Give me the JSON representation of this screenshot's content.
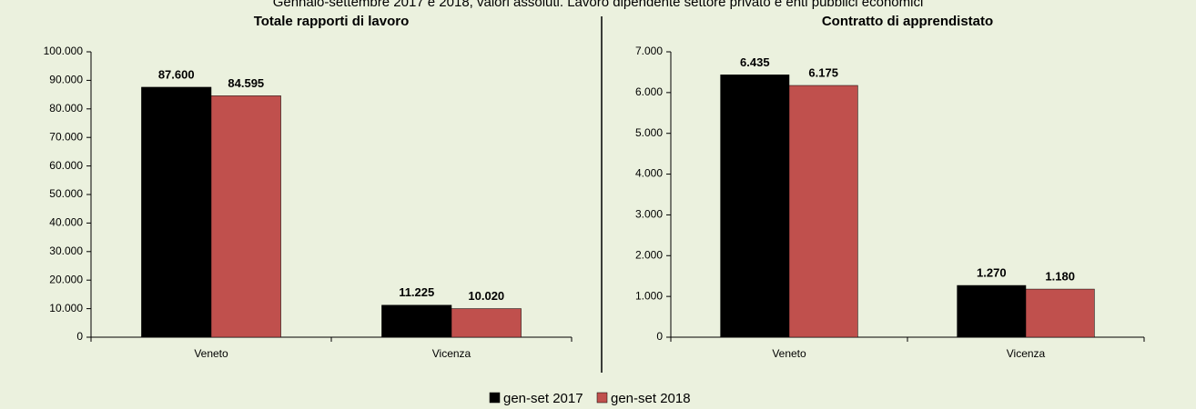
{
  "subtitle": "Gennaio-settembre 2017 e 2018, valori assoluti. Lavoro dipendente settore privato e enti pubblici economici",
  "chart_data": [
    {
      "type": "bar",
      "title": "Totale rapporti di lavoro",
      "categories": [
        "Veneto",
        "Vicenza"
      ],
      "series": [
        {
          "name": "gen-set 2017",
          "color": "#000000",
          "values": [
            87600,
            11225
          ],
          "value_labels": [
            "87.600",
            "11.225"
          ]
        },
        {
          "name": "gen-set 2018",
          "color": "#c0504d",
          "values": [
            84595,
            10020
          ],
          "value_labels": [
            "84.595",
            "10.020"
          ]
        }
      ],
      "ylim": [
        0,
        100000
      ],
      "yticks": [
        0,
        {
          "value": 10000,
          "label": "10.000"
        },
        {
          "value": 20000,
          "label": "20.000"
        },
        {
          "value": 30000,
          "label": "30.000"
        },
        {
          "value": 40000,
          "label": "40.000"
        },
        {
          "value": 50000,
          "label": "50.000"
        },
        {
          "value": 60000,
          "label": "60.000"
        },
        {
          "value": 70000,
          "label": "70.000"
        },
        {
          "value": 80000,
          "label": "80.000"
        },
        {
          "value": 90000,
          "label": "90.000"
        },
        {
          "value": 100000,
          "label": "100.000"
        }
      ]
    },
    {
      "type": "bar",
      "title": "Contratto di apprendistato",
      "categories": [
        "Veneto",
        "Vicenza"
      ],
      "series": [
        {
          "name": "gen-set 2017",
          "color": "#000000",
          "values": [
            6435,
            1270
          ],
          "value_labels": [
            "6.435",
            "1.270"
          ]
        },
        {
          "name": "gen-set 2018",
          "color": "#c0504d",
          "values": [
            6175,
            1180
          ],
          "value_labels": [
            "6.175",
            "1.180"
          ]
        }
      ],
      "ylim": [
        0,
        7000
      ],
      "yticks": [
        0,
        {
          "value": 1000,
          "label": "1.000"
        },
        {
          "value": 2000,
          "label": "2.000"
        },
        {
          "value": 3000,
          "label": "3.000"
        },
        {
          "value": 4000,
          "label": "4.000"
        },
        {
          "value": 5000,
          "label": "5.000"
        },
        {
          "value": 6000,
          "label": "6.000"
        },
        {
          "value": 7000,
          "label": "7.000"
        }
      ]
    }
  ]
}
